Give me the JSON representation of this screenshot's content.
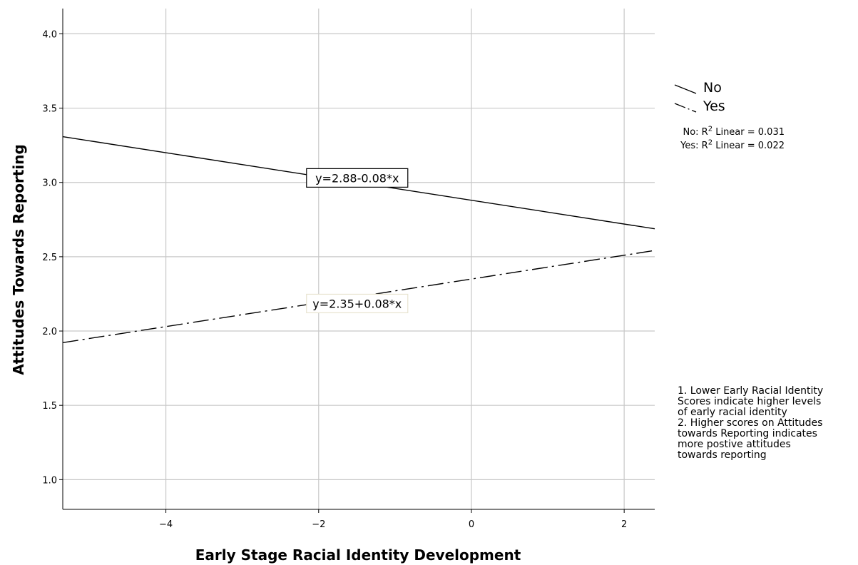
{
  "chart_data": {
    "type": "line",
    "title": "",
    "xlabel": "Early Stage Racial Identity Development",
    "ylabel": "Attitudes Towards Reporting",
    "xlim": [
      -5.35,
      2.4
    ],
    "ylim": [
      0.8,
      4.17
    ],
    "xticks": [
      -4,
      -2,
      0,
      2
    ],
    "yticks": [
      1.0,
      1.5,
      2.0,
      2.5,
      3.0,
      3.5,
      4.0
    ],
    "xtick_labels": [
      "−4",
      "−2",
      "0",
      "2"
    ],
    "ytick_labels": [
      "1.0",
      "1.5",
      "2.0",
      "2.5",
      "3.0",
      "3.5",
      "4.0"
    ],
    "grid": true,
    "legend_position": "right",
    "series": [
      {
        "name": "No",
        "intercept": 2.88,
        "slope": -0.08,
        "x": [
          -5.35,
          2.4
        ],
        "y": [
          3.29,
          2.7
        ],
        "equation_label": "y=2.88-0.08*x",
        "label_at_x": -2.0,
        "r2_text": "No: R² Linear = 0.031",
        "line_style": "solid",
        "color": "#000000"
      },
      {
        "name": "Yes",
        "intercept": 2.35,
        "slope": 0.08,
        "x": [
          -5.35,
          2.4
        ],
        "y": [
          1.95,
          2.53
        ],
        "equation_label": "y=2.35+0.08*x",
        "label_at_x": -2.0,
        "r2_text": "Yes: R² Linear = 0.022",
        "line_style": "dashdot",
        "color": "#000000"
      }
    ],
    "notes": [
      "1. Lower Early Racial Identity",
      "Scores indicate higher levels",
      "of early racial identity",
      "2. Higher scores on Attitudes",
      "towards Reporting indicates",
      "more postive attitudes",
      "towards reporting"
    ]
  },
  "legend": {
    "no_label": "No",
    "yes_label": "Yes"
  },
  "fit_stats": {
    "no_prefix": "No: R",
    "yes_prefix": "Yes: R",
    "sup": "2",
    "no_suffix": " Linear = 0.031",
    "yes_suffix": " Linear = 0.022"
  },
  "colors": {
    "grid": "#c8c8c8",
    "axis": "#000000",
    "line": "#000000",
    "label_box_border_no": "#000000",
    "label_box_border_yes": "#e8e4d0"
  }
}
